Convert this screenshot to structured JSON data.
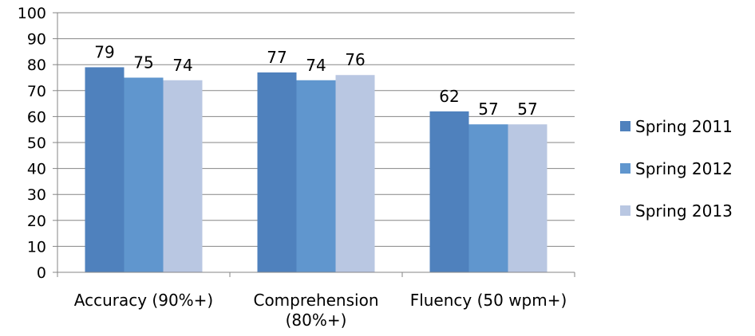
{
  "chart_data": {
    "type": "bar",
    "title": "",
    "xlabel": "",
    "ylabel": "",
    "categories": [
      [
        "Accuracy (90%+)"
      ],
      [
        "Comprehension",
        "(80%+)"
      ],
      [
        "Fluency (50 wpm+)"
      ]
    ],
    "series": [
      {
        "name": "Spring 2011",
        "color": "#4F81BD",
        "values": [
          79,
          77,
          62
        ]
      },
      {
        "name": "Spring 2012",
        "color": "#6096CE",
        "values": [
          75,
          74,
          57
        ]
      },
      {
        "name": "Spring 2013",
        "color": "#B9C7E2",
        "values": [
          74,
          76,
          57
        ]
      }
    ],
    "ylim": [
      0,
      100
    ],
    "yticks": [
      0,
      10,
      20,
      30,
      40,
      50,
      60,
      70,
      80,
      90,
      100
    ],
    "grid": true,
    "legend": "right",
    "data_labels": true
  }
}
